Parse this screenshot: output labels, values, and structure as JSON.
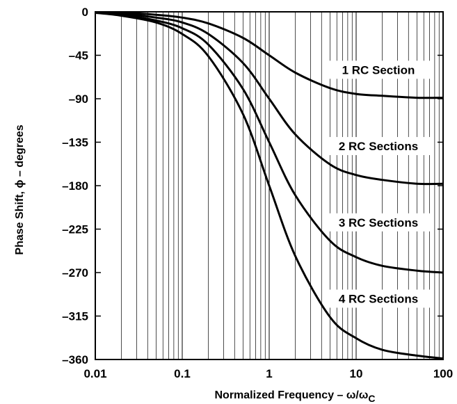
{
  "chart_data": {
    "type": "line",
    "title": "",
    "xlabel_main": "Normalized Frequency – ω/ω",
    "xlabel_sub": "C",
    "ylabel": "Phase Shift, ϕ – degrees",
    "x_scale": "log",
    "xlim": [
      0.01,
      100
    ],
    "ylim": [
      -360,
      0
    ],
    "x_ticks": [
      0.01,
      0.1,
      1,
      10,
      100
    ],
    "x_tick_labels": [
      "0.01",
      "0.1",
      "1",
      "10",
      "100"
    ],
    "y_ticks": [
      0,
      -45,
      -90,
      -135,
      -180,
      -225,
      -270,
      -315,
      -360
    ],
    "y_tick_labels": [
      "0",
      "–45",
      "–90",
      "–135",
      "–180",
      "–225",
      "–270",
      "–315",
      "–360"
    ],
    "grid": {
      "x": "log-minor",
      "y": false
    },
    "x": [
      0.01,
      0.02,
      0.05,
      0.1,
      0.2,
      0.5,
      1,
      2,
      5,
      10,
      20,
      50,
      100
    ],
    "series": [
      {
        "name": "1 RC Section",
        "values": [
          -1,
          -1,
          -3,
          -6,
          -12,
          -27,
          -45,
          -63,
          -79,
          -85,
          -87,
          -89,
          -89
        ]
      },
      {
        "name": "2 RC Sections",
        "values": [
          -1,
          -2,
          -6,
          -11,
          -23,
          -53,
          -90,
          -127,
          -158,
          -169,
          -174,
          -178,
          -178
        ]
      },
      {
        "name": "3 RC Sections",
        "values": [
          -1,
          -3,
          -9,
          -17,
          -34,
          -80,
          -135,
          -190,
          -237,
          -254,
          -263,
          -268,
          -270
        ]
      },
      {
        "name": "4 RC Sections",
        "values": [
          -1,
          -4,
          -11,
          -23,
          -46,
          -106,
          -180,
          -253,
          -316,
          -338,
          -350,
          -356,
          -359
        ]
      }
    ],
    "curve_label_y": [
      -60,
      -139,
      -218,
      -297
    ]
  }
}
